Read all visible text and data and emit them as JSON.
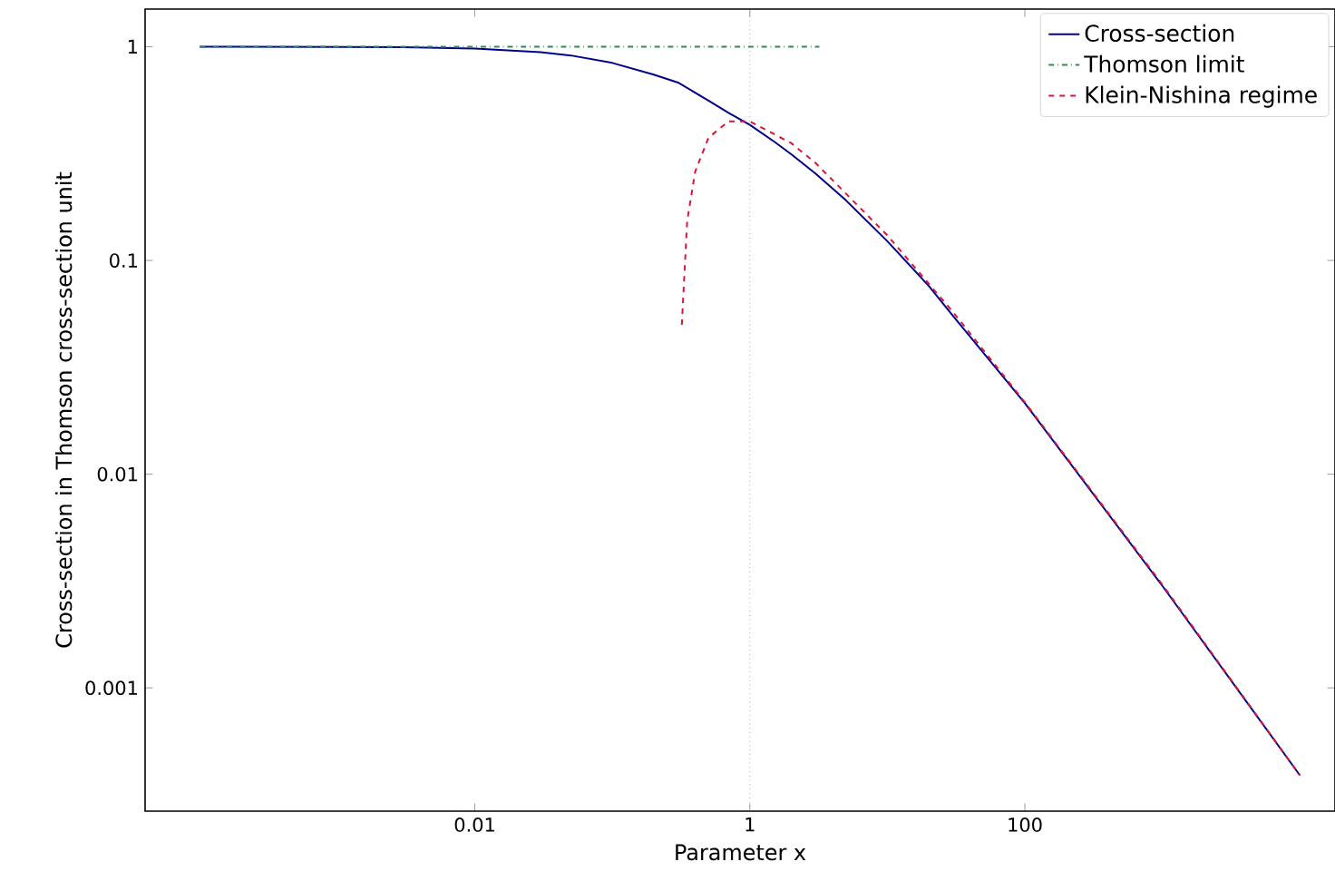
{
  "chart_data": {
    "type": "line",
    "xlabel": "Parameter x",
    "ylabel": "Cross-section in Thomson cross-section unit",
    "log": "xy",
    "xlim": [
      4e-05,
      18000
    ],
    "ylim": [
      0.000265,
      1.5
    ],
    "xticks": [
      0.01,
      1,
      100
    ],
    "yticks": [
      0.001,
      0.01,
      0.1,
      1
    ],
    "legend": "top right",
    "grid": false,
    "series": [
      {
        "name": "Cross-section",
        "color": "#00008b",
        "line_style": "solid",
        "x": [
          0.0001,
          0.001,
          0.003,
          0.01,
          0.03,
          0.05,
          0.1,
          0.2,
          0.3,
          0.5,
          0.7,
          1,
          1.5,
          2,
          3,
          5,
          10,
          20,
          30,
          100,
          1000,
          10000
        ],
        "values": [
          1.0,
          0.998,
          0.994,
          0.98,
          0.944,
          0.91,
          0.84,
          0.74,
          0.68,
          0.56,
          0.49,
          0.431,
          0.36,
          0.314,
          0.255,
          0.191,
          0.123,
          0.076,
          0.055,
          0.0215,
          0.003,
          0.00039
        ]
      },
      {
        "name": "Thomson limit",
        "color": "#2e8b57",
        "line_style": "dashdot",
        "x": [
          0.0001,
          3.2
        ],
        "values": [
          1,
          1
        ]
      },
      {
        "name": "Klein-Nishina regime",
        "color": "#dc143c",
        "line_style": "dashed",
        "x": [
          0.32,
          0.35,
          0.4,
          0.5,
          0.7,
          1,
          2,
          3,
          10,
          30,
          100,
          1000,
          10000
        ],
        "values": [
          0.05,
          0.153,
          0.26,
          0.375,
          0.448,
          0.447,
          0.354,
          0.286,
          0.131,
          0.0574,
          0.0217,
          0.00304,
          0.00039
        ]
      }
    ],
    "ref_lines": [
      {
        "axis": "x",
        "value": 1,
        "color": "#808080",
        "line_style": "dotted"
      }
    ]
  }
}
